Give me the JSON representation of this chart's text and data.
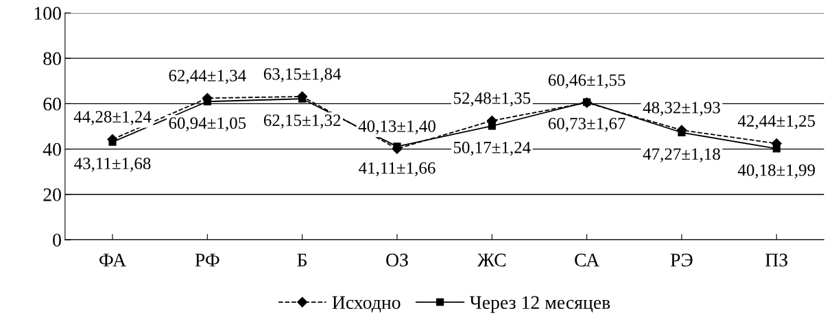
{
  "chart_data": {
    "type": "line",
    "categories": [
      "ФА",
      "РФ",
      "Б",
      "ОЗ",
      "ЖС",
      "СА",
      "РЭ",
      "ПЗ"
    ],
    "series": [
      {
        "name": "Исходно",
        "color": "#000000",
        "marker": "diamond",
        "line_style": "dashed",
        "values": [
          44.28,
          62.44,
          63.15,
          40.13,
          52.48,
          60.46,
          48.32,
          42.44
        ],
        "value_labels": [
          "44,28±1,24",
          "62,44±1,34",
          "63,15±1,84",
          "40,13±1,40",
          "52,48±1,35",
          "60,46±1,55",
          "48,32±1,93",
          "42,44±1,25"
        ]
      },
      {
        "name": "Через 12 месяцев",
        "color": "#000000",
        "marker": "square",
        "line_style": "solid",
        "values": [
          43.11,
          60.94,
          62.15,
          41.11,
          50.17,
          60.73,
          47.27,
          40.18
        ],
        "value_labels": [
          "43,11±1,68",
          "60,94±1,05",
          "62,15±1,32",
          "41,11±1,66",
          "50,17±1,24",
          "60,73±1,67",
          "47,27±1,18",
          "40,18±1,99"
        ]
      }
    ],
    "ylim": [
      0,
      100
    ],
    "yticks": [
      0,
      20,
      40,
      60,
      80,
      100
    ],
    "grid": "y",
    "legend": "bottom"
  }
}
